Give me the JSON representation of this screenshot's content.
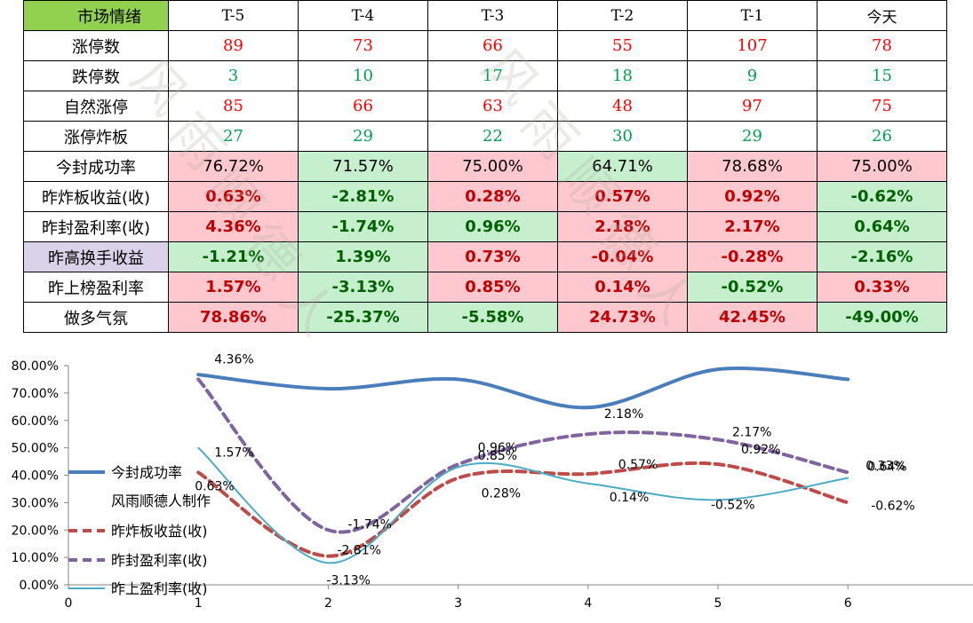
{
  "table": {
    "header": [
      "市场情绪",
      "T-5",
      "T-4",
      "T-3",
      "T-2",
      "T-1",
      "今天"
    ],
    "rows": [
      {
        "label": "涨停数",
        "kind": "count",
        "values": [
          "89",
          "73",
          "66",
          "55",
          "107",
          "78"
        ],
        "color": "red"
      },
      {
        "label": "跌停数",
        "kind": "count",
        "values": [
          "3",
          "10",
          "17",
          "18",
          "9",
          "15"
        ],
        "color": "green"
      },
      {
        "label": "自然涨停",
        "kind": "count",
        "values": [
          "85",
          "66",
          "63",
          "48",
          "97",
          "75"
        ],
        "color": "red"
      },
      {
        "label": "涨停炸板",
        "kind": "count",
        "values": [
          "27",
          "29",
          "22",
          "30",
          "29",
          "26"
        ],
        "color": "green"
      },
      {
        "label": "今封成功率",
        "kind": "rate",
        "values": [
          "76.72%",
          "71.57%",
          "75.00%",
          "64.71%",
          "78.68%",
          "75.00%"
        ],
        "bg": [
          "pink",
          "green",
          "pink",
          "green",
          "pink",
          "pink"
        ]
      },
      {
        "label": "昨炸板收益(收)",
        "kind": "pct",
        "values": [
          "0.63%",
          "-2.81%",
          "0.28%",
          "0.57%",
          "0.92%",
          "-0.62%"
        ],
        "bg": [
          "pink",
          "green",
          "pink",
          "pink",
          "pink",
          "green"
        ]
      },
      {
        "label": "昨封盈利率(收)",
        "kind": "pct",
        "values": [
          "4.36%",
          "-1.74%",
          "0.96%",
          "2.18%",
          "2.17%",
          "0.64%"
        ],
        "bg": [
          "pink",
          "green",
          "green",
          "pink",
          "pink",
          "green"
        ]
      },
      {
        "label": "昨高换手收益",
        "kind": "pct",
        "label_bg": "lav",
        "values": [
          "-1.21%",
          "1.39%",
          "0.73%",
          "-0.04%",
          "-0.28%",
          "-2.16%"
        ],
        "bg": [
          "green",
          "green",
          "pink",
          "pink",
          "pink",
          "green"
        ]
      },
      {
        "label": "昨上榜盈利率",
        "kind": "pct",
        "values": [
          "1.57%",
          "-3.13%",
          "0.85%",
          "0.14%",
          "-0.52%",
          "0.33%"
        ],
        "bg": [
          "pink",
          "green",
          "pink",
          "pink",
          "green",
          "pink"
        ]
      },
      {
        "label": "做多气氛",
        "kind": "pct",
        "values": [
          "78.86%",
          "-25.37%",
          "-5.58%",
          "24.73%",
          "42.45%",
          "-49.00%"
        ],
        "bg": [
          "pink",
          "green",
          "green",
          "pink",
          "pink",
          "green"
        ]
      }
    ]
  },
  "watermark_text": "风雨顺德人",
  "chart_data": {
    "type": "line",
    "x": [
      1,
      2,
      3,
      4,
      5,
      6
    ],
    "xlim": [
      0,
      7
    ],
    "ylim": [
      0,
      80
    ],
    "x_ticks": [
      "0",
      "1",
      "2",
      "3",
      "4",
      "5",
      "6"
    ],
    "y_ticks": [
      "0.00%",
      "10.00%",
      "20.00%",
      "30.00%",
      "40.00%",
      "50.00%",
      "60.00%",
      "70.00%",
      "80.00%"
    ],
    "grid": false,
    "legend_position": "left",
    "legend_extra_text": "风雨顺德人制作",
    "series": [
      {
        "name": "今封成功率",
        "color": "#4a7ebb",
        "width": 4,
        "dash": "",
        "values": [
          76.72,
          71.57,
          75.0,
          64.71,
          78.68,
          75.0
        ],
        "labels": []
      },
      {
        "name": "昨炸板收益(收)",
        "color": "#be4b48",
        "width": 4,
        "dash": "10,6",
        "values": [
          41,
          10.5,
          39,
          40.5,
          44,
          30
        ],
        "labels": [
          "0.63%",
          "-2.81%",
          "0.28%",
          "0.57%",
          "0.92%",
          "-0.62%"
        ]
      },
      {
        "name": "昨封盈利率(收)",
        "color": "#7f64a0",
        "width": 4,
        "dash": "10,6",
        "values": [
          75,
          20,
          44,
          55,
          53,
          41
        ],
        "labels": [
          "4.36%",
          "-1.74%",
          "0.96%",
          "2.18%",
          "2.17%",
          "0.64%"
        ]
      },
      {
        "name": "昨上盈利率(收)",
        "color": "#4bacc6",
        "width": 2,
        "dash": "",
        "values": [
          50,
          8,
          43,
          37,
          31,
          39
        ],
        "labels": [
          "1.57%",
          "-3.13%",
          "0.85%",
          "0.14%",
          "-0.52%",
          "0.33%"
        ]
      }
    ]
  }
}
